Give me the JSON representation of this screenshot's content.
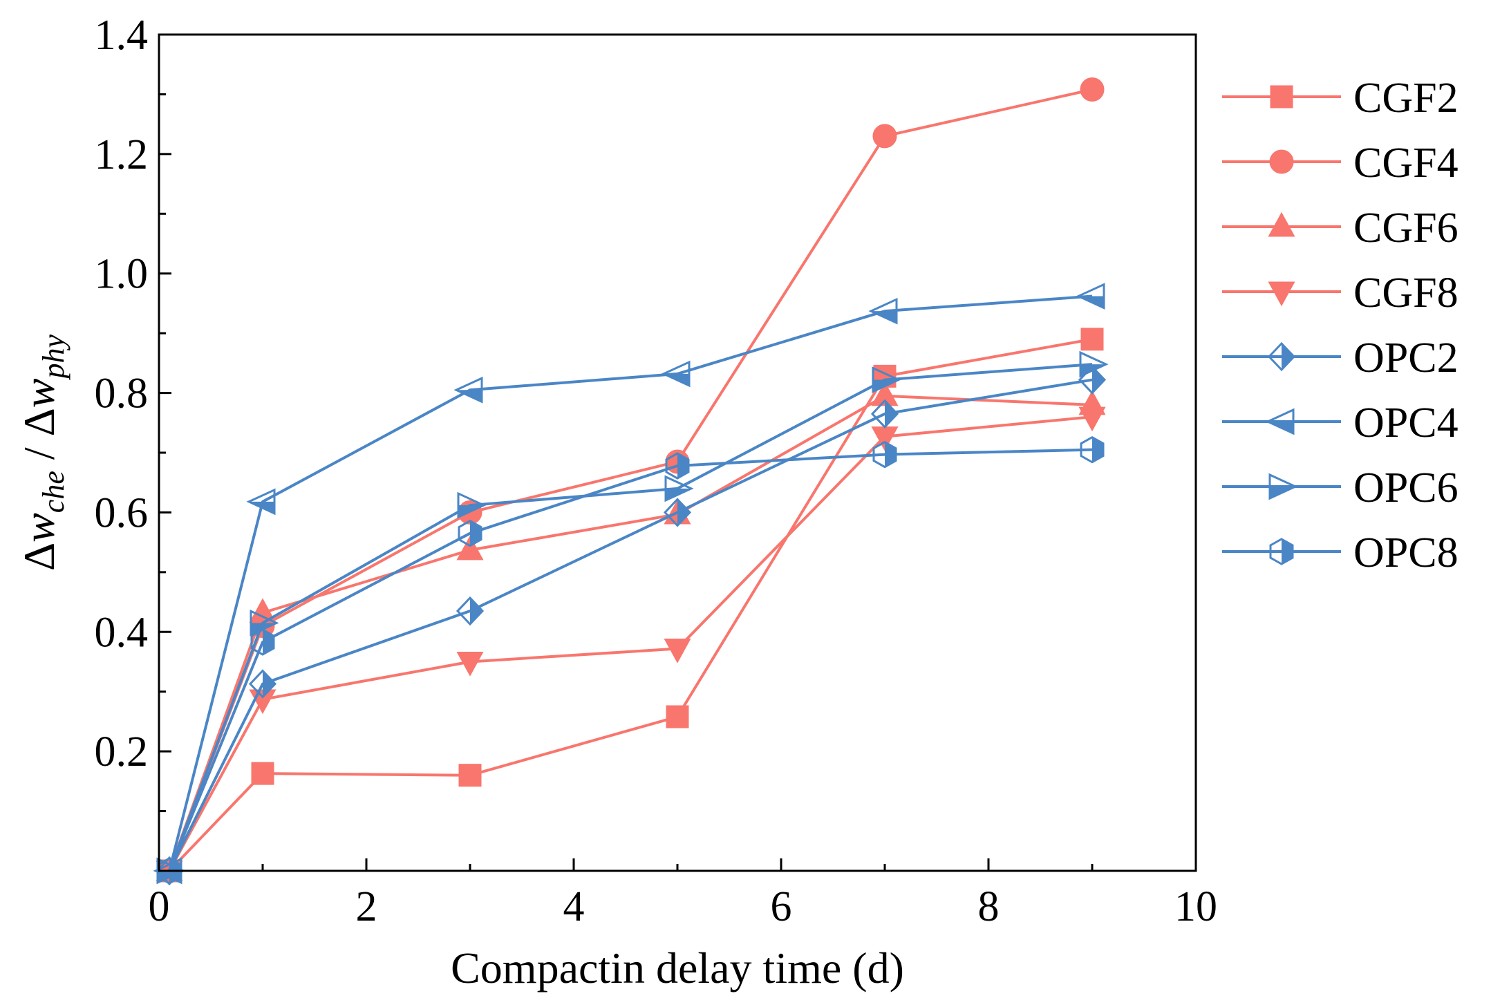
{
  "chart_data": {
    "type": "line",
    "title": "",
    "xlabel": "Compactin delay time (d)",
    "ylabel": {
      "delta1": "Δ",
      "w1": "w",
      "sub1": "che",
      "slash": " / ",
      "delta2": "Δ",
      "w2": "w",
      "sub2": "phy"
    },
    "xlim": [
      0,
      10
    ],
    "ylim": [
      0,
      1.4
    ],
    "xticks": [
      "0",
      "2",
      "4",
      "6",
      "8",
      "10"
    ],
    "yticks": [
      "0.2",
      "0.4",
      "0.6",
      "0.8",
      "1.0",
      "1.2",
      "1.4"
    ],
    "legend_position": "right-outside",
    "colors": {
      "cgf": "#f8766d",
      "opc": "#4a86c6"
    },
    "series": [
      {
        "name": "CGF2",
        "marker": "square",
        "color": "cgf",
        "x": [
          0.1,
          1,
          3,
          5,
          7,
          9
        ],
        "y": [
          0.0,
          0.163,
          0.16,
          0.258,
          0.828,
          0.89
        ]
      },
      {
        "name": "CGF4",
        "marker": "circle",
        "color": "cgf",
        "x": [
          0.1,
          1,
          3,
          5,
          7,
          9
        ],
        "y": [
          0.0,
          0.41,
          0.6,
          0.685,
          1.23,
          1.308
        ]
      },
      {
        "name": "CGF6",
        "marker": "triangle-up",
        "color": "cgf",
        "x": [
          0.1,
          1,
          3,
          5,
          7,
          9
        ],
        "y": [
          0.0,
          0.432,
          0.537,
          0.597,
          0.795,
          0.78
        ]
      },
      {
        "name": "CGF8",
        "marker": "triangle-down",
        "color": "cgf",
        "x": [
          0.1,
          1,
          3,
          5,
          7,
          9
        ],
        "y": [
          0.0,
          0.287,
          0.35,
          0.372,
          0.727,
          0.76
        ]
      },
      {
        "name": "OPC2",
        "marker": "diamond-half",
        "color": "opc",
        "x": [
          0.1,
          1,
          3,
          5,
          7,
          9
        ],
        "y": [
          0.0,
          0.313,
          0.435,
          0.6,
          0.765,
          0.822
        ]
      },
      {
        "name": "OPC4",
        "marker": "triangle-left-half",
        "color": "opc",
        "x": [
          0.1,
          1,
          3,
          5,
          7,
          9
        ],
        "y": [
          0.0,
          0.618,
          0.805,
          0.832,
          0.937,
          0.962
        ]
      },
      {
        "name": "OPC6",
        "marker": "triangle-right-half",
        "color": "opc",
        "x": [
          0.1,
          1,
          3,
          5,
          7,
          9
        ],
        "y": [
          0.0,
          0.415,
          0.612,
          0.64,
          0.822,
          0.848
        ]
      },
      {
        "name": "OPC8",
        "marker": "hexagon-half",
        "color": "opc",
        "x": [
          0.1,
          1,
          3,
          5,
          7,
          9
        ],
        "y": [
          0.0,
          0.383,
          0.565,
          0.678,
          0.697,
          0.705
        ]
      }
    ]
  }
}
